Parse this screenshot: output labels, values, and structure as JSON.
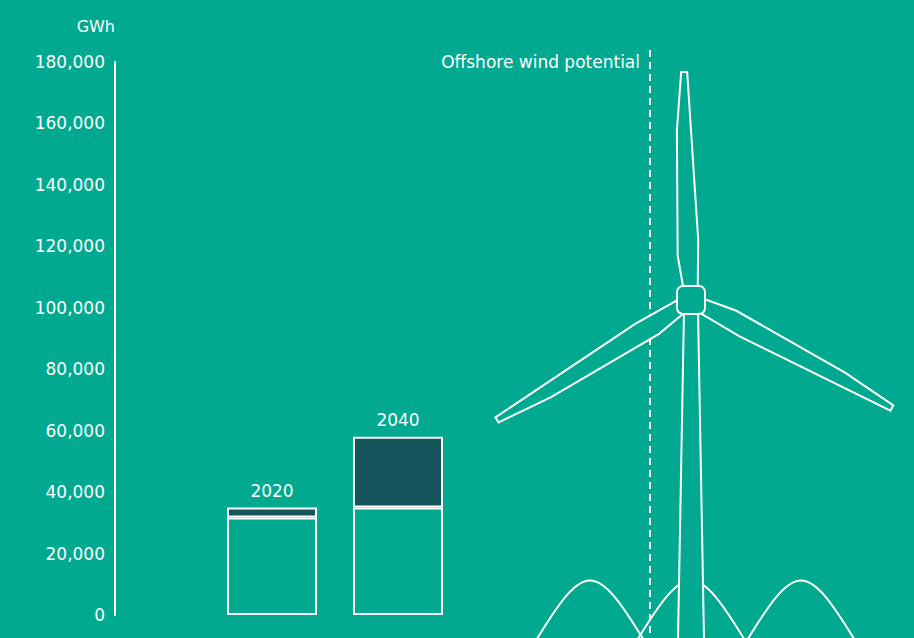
{
  "chart_data": {
    "type": "bar",
    "stacked": true,
    "grid": false,
    "tick_labels": "y",
    "y_label": "GWh",
    "categories": [
      "2020",
      "2040",
      null,
      null
    ],
    "series": [
      {
        "color": "#00a98f",
        "values": [
          31700,
          35000,
          null,
          null
        ]
      },
      {
        "color": "#17555c",
        "values": [
          3300,
          23000,
          null,
          null
        ]
      }
    ],
    "ylim": [
      0,
      180000
    ],
    "yticks": [
      0,
      {
        "value": 20000,
        "label": "20,000"
      },
      {
        "value": 40000,
        "label": "40,000"
      },
      {
        "value": 60000,
        "label": "60,000"
      },
      {
        "value": 80000,
        "label": "80,000"
      },
      {
        "value": 100000,
        "label": "100,000"
      },
      {
        "value": 120000,
        "label": "120,000"
      },
      {
        "value": 140000,
        "label": "140,000"
      },
      {
        "value": 160000,
        "label": "160,000"
      },
      {
        "value": 180000,
        "label": "180,000"
      }
    ],
    "annotations": [
      {
        "text": "Offshore wind potential",
        "line_style": "dashed"
      }
    ]
  }
}
